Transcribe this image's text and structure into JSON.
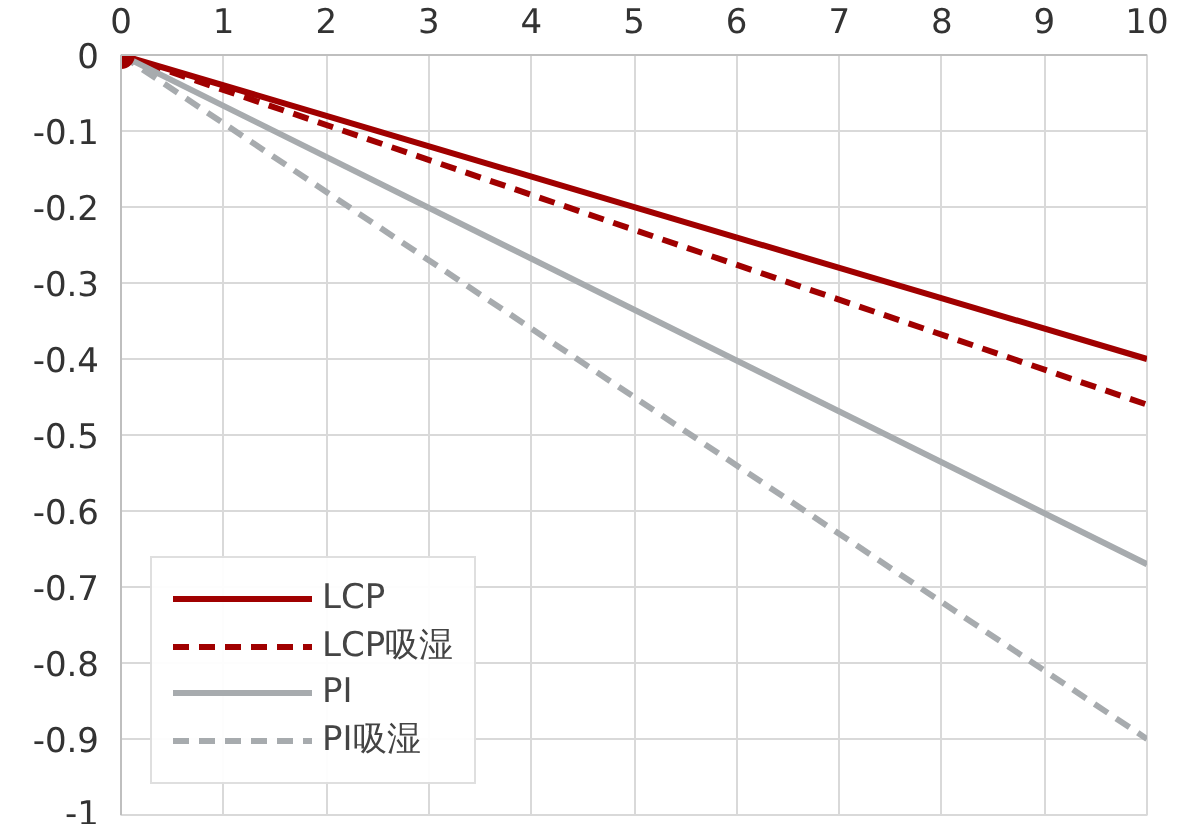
{
  "chart_data": {
    "type": "line",
    "x": [
      0,
      10
    ],
    "xlim": [
      0,
      10
    ],
    "xticks": [
      0,
      1,
      2,
      3,
      4,
      5,
      6,
      7,
      8,
      9,
      10
    ],
    "ylim": [
      -1,
      0
    ],
    "yticks": [
      0,
      -0.1,
      -0.2,
      -0.3,
      -0.4,
      -0.5,
      -0.6,
      -0.7,
      -0.8,
      -0.9,
      -1
    ],
    "grid": true,
    "legend": "bottom left",
    "series": [
      {
        "name": "LCP",
        "color": "#a00000",
        "values": [
          0,
          -0.4
        ],
        "line_style": "solid"
      },
      {
        "name": "LCP吸湿",
        "color": "#a00000",
        "values": [
          0,
          -0.46
        ],
        "line_style": "dashed"
      },
      {
        "name": "PI",
        "color": "#a7abae",
        "values": [
          0,
          -0.67
        ],
        "line_style": "solid"
      },
      {
        "name": "PI吸湿",
        "color": "#a7abae",
        "values": [
          0,
          -0.9
        ],
        "line_style": "dashed"
      },
      {
        "type": "scatter",
        "color": "#a00000",
        "x": [
          0
        ],
        "values": [
          0
        ],
        "marker": "circle"
      }
    ]
  }
}
